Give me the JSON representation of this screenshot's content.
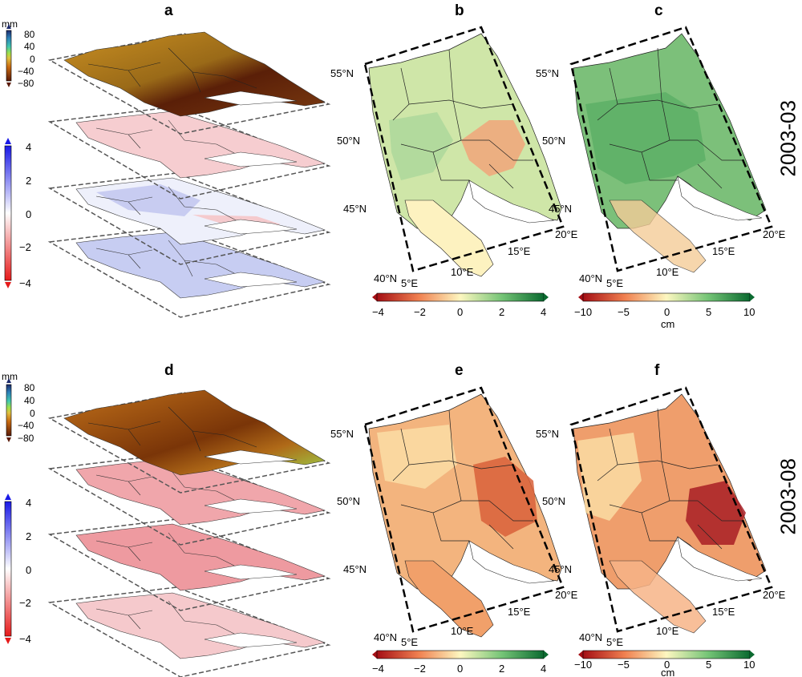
{
  "panel_letters": [
    "a",
    "b",
    "c",
    "d",
    "e",
    "f"
  ],
  "row_labels": [
    "2003-03",
    "2003-08"
  ],
  "stack_scale": {
    "unit": "mm",
    "ticks": [
      "80",
      "40",
      "0",
      "−40",
      "−80"
    ]
  },
  "layer_scale": {
    "ticks": [
      "4",
      "2",
      "0",
      "−2",
      "−4"
    ]
  },
  "map_scale_b": {
    "ticks": [
      "−4",
      "−2",
      "0",
      "2",
      "4"
    ],
    "unit": ""
  },
  "map_scale_c": {
    "ticks": [
      "−10",
      "−5",
      "0",
      "5",
      "10"
    ],
    "unit": "cm"
  },
  "lat_labels": [
    "55°N",
    "50°N",
    "45°N",
    "40°N"
  ],
  "lon_labels": [
    "5°E",
    "10°E",
    "15°E",
    "20°E"
  ],
  "colors": {
    "stack_top_2003_03": "#a8731c",
    "stack_top_2003_08": "#b86a18",
    "b_fill": "#cfe6a8",
    "c_fill": "#7cc07a",
    "e_fill": "#f3b47e",
    "f_fill": "#ef9e6c"
  }
}
